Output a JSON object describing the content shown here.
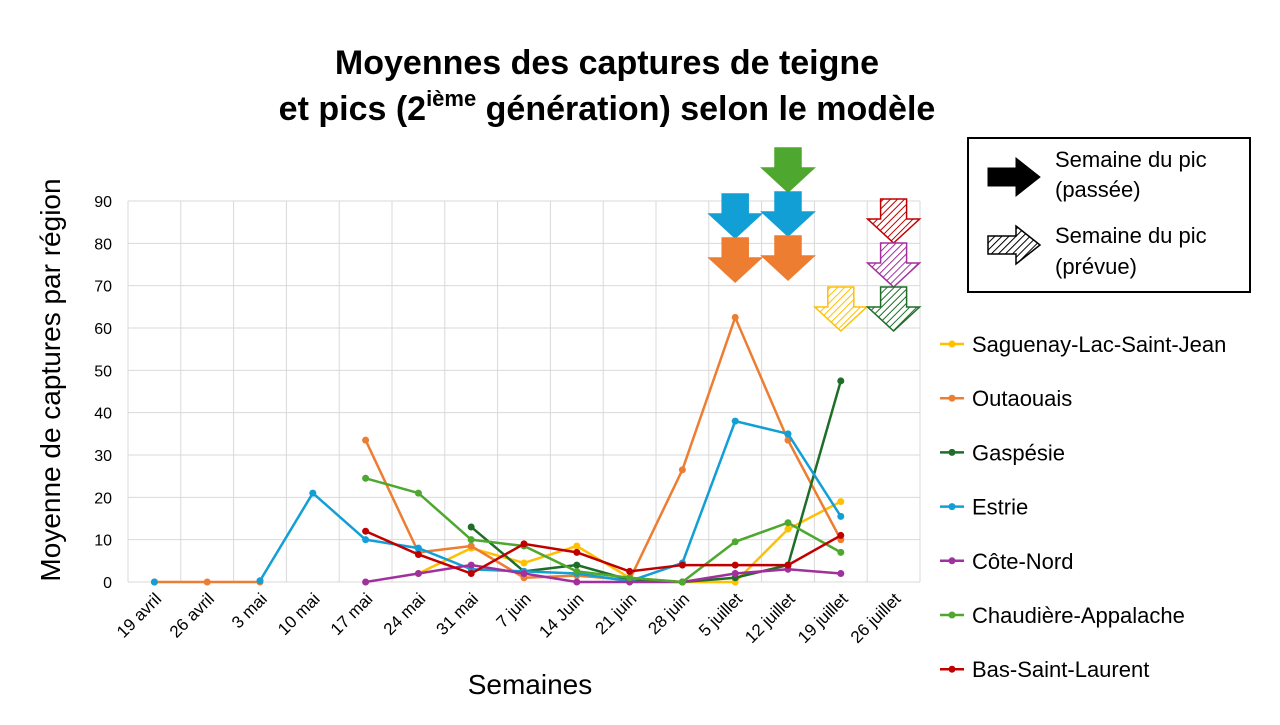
{
  "chart_data": {
    "type": "line",
    "title_line1": "Moyennes des captures de teigne",
    "title_line2_pre": "et pics (2",
    "title_line2_sup": "ième",
    "title_line2_post": " génération) selon le modèle",
    "xlabel": "Semaines",
    "ylabel": "Moyenne de captures par région",
    "ylim": [
      0,
      90
    ],
    "yticks": [
      0,
      10,
      20,
      30,
      40,
      50,
      60,
      70,
      80,
      90
    ],
    "grid": true,
    "legend_placement": "right",
    "categories": [
      "19 avril",
      "26 avril",
      "3 mai",
      "10 mai",
      "17 mai",
      "24 mai",
      "31 mai",
      "7 juin",
      "14 Juin",
      "21 juin",
      "28 juin",
      "5 juillet",
      "12 juillet",
      "19 juillet",
      "26 juillet"
    ],
    "series": [
      {
        "name": "Saguenay-Lac-Saint-Jean",
        "color": "#FFC000",
        "values": [
          null,
          null,
          null,
          null,
          null,
          2,
          8,
          4.5,
          8.5,
          1,
          0,
          0,
          12.5,
          19,
          null
        ]
      },
      {
        "name": "Outaouais",
        "color": "#ED7D31",
        "values": [
          0,
          0,
          0,
          null,
          33.5,
          7,
          8.5,
          1,
          1.5,
          0.5,
          26.5,
          62.5,
          33.5,
          10,
          null
        ]
      },
      {
        "name": "Gaspésie",
        "color": "#1E6E2A",
        "values": [
          null,
          null,
          null,
          null,
          null,
          null,
          13,
          2.5,
          4,
          0.5,
          0,
          1,
          4,
          47.5,
          null
        ]
      },
      {
        "name": "Estrie",
        "color": "#129FD6",
        "values": [
          0,
          null,
          0.3,
          21,
          10,
          8,
          3,
          2.5,
          2,
          0.2,
          4.5,
          38,
          35,
          15.5,
          null
        ]
      },
      {
        "name": "Côte-Nord",
        "color": "#A0309E",
        "values": [
          null,
          null,
          null,
          null,
          0,
          2,
          4,
          2,
          0,
          0,
          0,
          2,
          3,
          2,
          null
        ]
      },
      {
        "name": "Chaudière-Appalache",
        "color": "#4EA72E",
        "values": [
          null,
          null,
          null,
          null,
          24.5,
          21,
          10,
          8.5,
          2.5,
          1,
          0,
          9.5,
          14,
          7,
          null
        ]
      },
      {
        "name": "Bas-Saint-Laurent",
        "color": "#C00000",
        "values": [
          null,
          null,
          null,
          null,
          12,
          6.5,
          2,
          9,
          7,
          2.5,
          4,
          4,
          4,
          11,
          null
        ]
      }
    ],
    "peaks": [
      {
        "series": "Estrie",
        "week": "5 juillet",
        "status": "passée"
      },
      {
        "series": "Outaouais",
        "week": "5 juillet",
        "status": "passée"
      },
      {
        "series": "Chaudière-Appalache",
        "week": "12 juillet",
        "status": "passée"
      },
      {
        "series": "Estrie",
        "week": "12 juillet",
        "status": "passée"
      },
      {
        "series": "Outaouais",
        "week": "12 juillet",
        "status": "passée"
      },
      {
        "series": "Saguenay-Lac-Saint-Jean",
        "week": "19 juillet",
        "status": "prévue"
      },
      {
        "series": "Bas-Saint-Laurent",
        "week": "26 juillet",
        "status": "prévue"
      },
      {
        "series": "Côte-Nord",
        "week": "26 juillet",
        "status": "prévue"
      },
      {
        "series": "Gaspésie",
        "week": "26 juillet",
        "status": "prévue"
      }
    ],
    "arrow_legend": {
      "past_line1": "Semaine du pic",
      "past_line2": "(passée)",
      "forecast_line1": "Semaine du pic",
      "forecast_line2": "(prévue)"
    }
  }
}
